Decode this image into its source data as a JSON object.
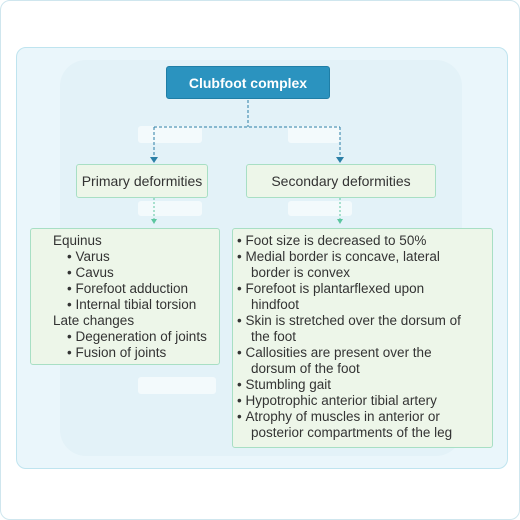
{
  "diagram": {
    "root": {
      "label": "Clubfoot complex"
    },
    "branches": [
      {
        "label": "Primary deformities",
        "items": [
          {
            "text": "Equinus",
            "bullet": false,
            "indent": false
          },
          {
            "text": "Varus",
            "bullet": true,
            "indent": true
          },
          {
            "text": "Cavus",
            "bullet": true,
            "indent": true
          },
          {
            "text": "Forefoot adduction",
            "bullet": true,
            "indent": true
          },
          {
            "text": "Internal tibial torsion",
            "bullet": true,
            "indent": true
          },
          {
            "text": "Late changes",
            "bullet": false,
            "indent": false
          },
          {
            "text": "Degeneration of joints",
            "bullet": true,
            "indent": true
          },
          {
            "text": "Fusion of joints",
            "bullet": true,
            "indent": true
          }
        ]
      },
      {
        "label": "Secondary deformities",
        "items": [
          {
            "lines": [
              "Foot size is decreased to 50%"
            ]
          },
          {
            "lines": [
              "Medial border is concave, lateral",
              "border is convex"
            ]
          },
          {
            "lines": [
              "Forefoot is plantarflexed upon",
              "hindfoot"
            ]
          },
          {
            "lines": [
              "Skin is stretched over the dorsum of",
              "the foot"
            ]
          },
          {
            "lines": [
              "Callosities are present over the",
              "dorsum of the foot"
            ]
          },
          {
            "lines": [
              "Stumbling gait"
            ]
          },
          {
            "lines": [
              "Hypotrophic anterior tibial artery"
            ]
          },
          {
            "lines": [
              "Atrophy of muscles in anterior or",
              "posterior compartments of the leg"
            ]
          }
        ]
      }
    ]
  },
  "colors": {
    "root_fill": "#2b93bf",
    "node_fill": "#edf6e9",
    "node_border": "#a8dfc4",
    "connector": "#2b7fa6",
    "arrow_small": "#5cc6a0",
    "panel_fill": "#eaf6fb"
  }
}
